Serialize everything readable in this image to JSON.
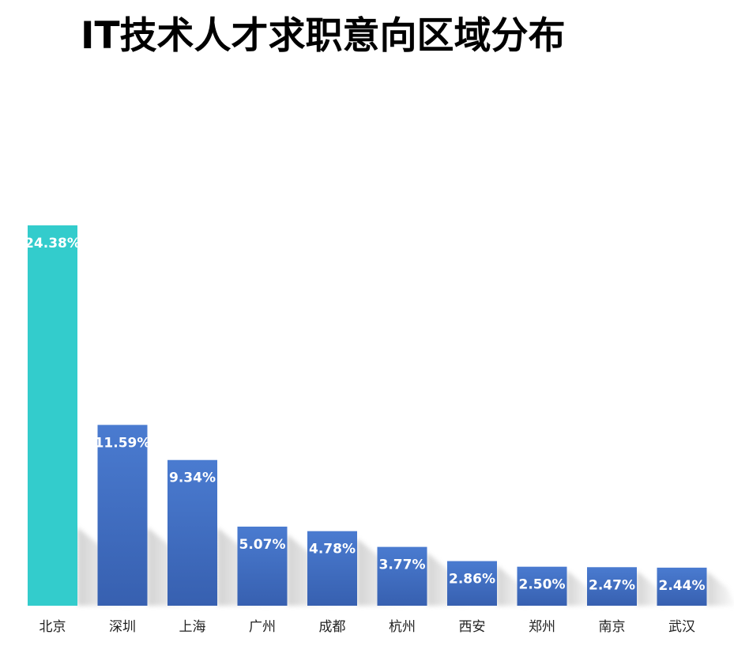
{
  "chart_data": {
    "type": "bar",
    "title": "IT技术人才求职意向区域分布",
    "categories": [
      "北京",
      "深圳",
      "上海",
      "广州",
      "成都",
      "杭州",
      "西安",
      "郑州",
      "南京",
      "武汉"
    ],
    "values": [
      24.38,
      11.59,
      9.34,
      5.07,
      4.78,
      3.77,
      2.86,
      2.5,
      2.47,
      2.44
    ],
    "value_labels": [
      "24.38%",
      "11.59%",
      "9.34%",
      "5.07%",
      "4.78%",
      "3.77%",
      "2.86%",
      "2.50%",
      "2.47%",
      "2.44%"
    ],
    "unit": "%",
    "xlabel": "",
    "ylabel": "",
    "ylim": [
      0,
      24.38
    ],
    "grid": false,
    "legend": "none",
    "colors": {
      "highlight": "#33CCCC",
      "bar_top": "#4A7BD0",
      "bar_bottom": "#3760B0",
      "shadow": "#C8C8C8"
    }
  }
}
